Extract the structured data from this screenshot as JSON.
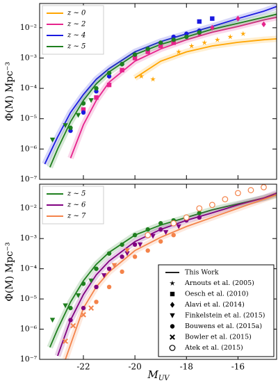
{
  "chart_data": [
    {
      "type": "line",
      "xlim": [
        -23.7,
        -14.5
      ],
      "ylim": [
        1e-07,
        0.063
      ],
      "log_y": true,
      "yticks": [
        {
          "value": 1e-07,
          "label": "10⁻⁷"
        },
        {
          "value": 1e-06,
          "label": "10⁻⁶"
        },
        {
          "value": 1e-05,
          "label": "10⁻⁵"
        },
        {
          "value": 0.0001,
          "label": "10⁻⁴"
        },
        {
          "value": 0.001,
          "label": "10⁻³"
        },
        {
          "value": 0.01,
          "label": "10⁻²"
        }
      ],
      "y_label": "Φ(M) Mpc⁻³",
      "legend": "upper left",
      "series": [
        {
          "name": "z ∼ 0",
          "color": "#ffa500",
          "x": [
            -20,
            -19,
            -18,
            -17,
            -16,
            -15,
            -14.5
          ],
          "values": [
            0.00022,
            0.00079,
            0.0016,
            0.0025,
            0.0033,
            0.004,
            0.0043
          ]
        },
        {
          "name": "z ∼ 2",
          "color": "#e6238c",
          "x": [
            -22.5,
            -22,
            -21.5,
            -21,
            -20,
            -19,
            -18,
            -17,
            -16,
            -15,
            -14.5
          ],
          "values": [
            5e-07,
            6.3e-06,
            4e-05,
            0.00016,
            0.00079,
            0.002,
            0.004,
            0.0071,
            0.011,
            0.018,
            0.022
          ]
        },
        {
          "name": "z ∼ 4",
          "color": "#1a1ae0",
          "x": [
            -23.5,
            -23,
            -22.5,
            -22,
            -21.5,
            -21,
            -20,
            -19,
            -18,
            -17,
            -16,
            -15,
            -14.5
          ],
          "values": [
            3.2e-07,
            2.5e-06,
            1.6e-05,
            6.3e-05,
            0.0002,
            0.00045,
            0.0016,
            0.0035,
            0.0063,
            0.011,
            0.02,
            0.035,
            0.05
          ]
        },
        {
          "name": "z ∼ 5",
          "color": "#1e7f1e",
          "x": [
            -23.3,
            -23,
            -22.5,
            -22,
            -21.5,
            -21,
            -20,
            -19,
            -18,
            -17,
            -16,
            -15,
            -14.5
          ],
          "values": [
            2.5e-07,
            1e-06,
            7.9e-06,
            4e-05,
            0.00014,
            0.00035,
            0.0013,
            0.0028,
            0.005,
            0.0089,
            0.014,
            0.022,
            0.028
          ]
        }
      ],
      "points": [
        {
          "color": "#ffa500",
          "marker": "star",
          "x": [
            -19.75,
            -19.3,
            -18.3,
            -17.8,
            -17.3,
            -16.8,
            -16.3,
            -15.8
          ],
          "values": [
            0.00025,
            0.0002,
            0.0016,
            0.0025,
            0.0032,
            0.004,
            0.005,
            0.0063
          ]
        },
        {
          "color": "#e6238c",
          "marker": "square",
          "x": [
            -22.0,
            -21.5,
            -21.0,
            -20.5,
            -20.0,
            -19.5,
            -19.0,
            -18.5
          ],
          "values": [
            2e-05,
            5e-05,
            0.00013,
            0.0004,
            0.001,
            0.0016,
            0.0025,
            0.0032
          ]
        },
        {
          "color": "#e6238c",
          "marker": "diamond",
          "x": [
            -17.5,
            -17.0,
            -16.0,
            -15.0
          ],
          "values": [
            0.0063,
            0.01,
            0.02,
            0.013
          ]
        },
        {
          "color": "#1a1ae0",
          "marker": "circle",
          "x": [
            -22.5,
            -22.0,
            -21.5,
            -21.0,
            -20.5,
            -20.0,
            -19.5,
            -19.0,
            -18.5,
            -18.0,
            -17.5
          ],
          "values": [
            4e-06,
            1.6e-05,
            8e-05,
            0.00025,
            0.00063,
            0.0013,
            0.002,
            0.0032,
            0.005,
            0.0063,
            0.008
          ]
        },
        {
          "color": "#1a1ae0",
          "marker": "square",
          "x": [
            -17.5,
            -17.0
          ],
          "values": [
            0.016,
            0.02
          ]
        },
        {
          "color": "#1e7f1e",
          "marker": "circle",
          "x": [
            -22.5,
            -22.0,
            -21.5,
            -21.0,
            -20.5,
            -20.0,
            -19.5,
            -19.0,
            -18.5,
            -18.0,
            -17.5
          ],
          "values": [
            5e-06,
            3.2e-05,
            0.0001,
            0.00032,
            0.00063,
            0.0013,
            0.002,
            0.0032,
            0.004,
            0.005,
            0.007
          ]
        },
        {
          "color": "#1e7f1e",
          "marker": "triangle",
          "x": [
            -23.2,
            -22.7,
            -22.2,
            -21.7
          ],
          "values": [
            2e-06,
            6e-06,
            1.3e-05,
            4e-05
          ]
        }
      ]
    },
    {
      "type": "line",
      "xlim": [
        -23.7,
        -14.5
      ],
      "ylim": [
        1e-07,
        0.063
      ],
      "log_y": true,
      "xticks": [
        -22,
        -20,
        -18,
        -16
      ],
      "yticks": [
        {
          "value": 1e-07,
          "label": "10⁻⁷"
        },
        {
          "value": 1e-06,
          "label": "10⁻⁶"
        },
        {
          "value": 1e-05,
          "label": "10⁻⁵"
        },
        {
          "value": 0.0001,
          "label": "10⁻⁴"
        },
        {
          "value": 0.001,
          "label": "10⁻³"
        },
        {
          "value": 0.01,
          "label": "10⁻²"
        }
      ],
      "y_label": "Φ(M) Mpc⁻³",
      "x_label": {
        "main": "M",
        "sub": "UV"
      },
      "legend": "upper left",
      "series": [
        {
          "name": "z ∼ 5",
          "color": "#1e7f1e",
          "x": [
            -23.3,
            -23,
            -22.5,
            -22,
            -21.5,
            -21,
            -20,
            -19,
            -18,
            -17,
            -16,
            -15,
            -14.5
          ],
          "values": [
            2.5e-07,
            1e-06,
            7.9e-06,
            4e-05,
            0.00014,
            0.00035,
            0.0013,
            0.0028,
            0.005,
            0.0089,
            0.014,
            0.022,
            0.028
          ]
        },
        {
          "name": "z ∼ 6",
          "color": "#800080",
          "x": [
            -23,
            -22.5,
            -22,
            -21.5,
            -21,
            -20,
            -19,
            -18,
            -17,
            -16,
            -15,
            -14.5
          ],
          "values": [
            1.3e-07,
            2e-06,
            1.4e-05,
            6.3e-05,
            0.00018,
            0.00079,
            0.002,
            0.004,
            0.0071,
            0.013,
            0.022,
            0.032
          ]
        },
        {
          "name": "z ∼ 7",
          "color": "#f4834a",
          "x": [
            -22.7,
            -22,
            -21.5,
            -21,
            -20,
            -19,
            -18,
            -17,
            -16,
            -15,
            -14.5
          ],
          "values": [
            1e-07,
            5e-06,
            2.5e-05,
            7.9e-05,
            0.0004,
            0.0011,
            0.0025,
            0.005,
            0.01,
            0.02,
            0.028
          ]
        }
      ],
      "points": [
        {
          "color": "#1e7f1e",
          "marker": "circle",
          "x": [
            -22.5,
            -22.0,
            -21.5,
            -21.0,
            -20.5,
            -20.0,
            -19.5,
            -19.0,
            -18.5,
            -18.0,
            -17.5
          ],
          "values": [
            5e-06,
            3.2e-05,
            0.0001,
            0.00032,
            0.00063,
            0.0013,
            0.002,
            0.0032,
            0.004,
            0.005,
            0.007
          ]
        },
        {
          "color": "#1e7f1e",
          "marker": "triangle",
          "x": [
            -23.2,
            -22.7,
            -22.2,
            -21.7
          ],
          "values": [
            2e-06,
            6e-06,
            1.3e-05,
            4e-05
          ]
        },
        {
          "color": "#800080",
          "marker": "circle",
          "x": [
            -22.5,
            -22.0,
            -21.5,
            -21.0,
            -20.5,
            -20.0,
            -19.5,
            -19.0,
            -18.5,
            -18.0,
            -17.5
          ],
          "values": [
            2e-06,
            5e-06,
            2.5e-05,
            0.0001,
            0.00025,
            0.00063,
            0.0013,
            0.002,
            0.0032,
            0.004,
            0.005
          ]
        },
        {
          "color": "#800080",
          "marker": "triangle",
          "x": [
            -21.2,
            -20.8,
            -20.3,
            -19.8,
            -19.3,
            -18.8,
            -18.3
          ],
          "values": [
            6e-05,
            0.00013,
            0.00032,
            0.00063,
            0.0012,
            0.0016,
            0.0025
          ]
        },
        {
          "color": "#f4834a",
          "marker": "circle",
          "x": [
            -21.5,
            -21.0,
            -20.5,
            -20.0,
            -19.5,
            -19.0,
            -18.5
          ],
          "values": [
            8e-06,
            2.5e-05,
            8e-05,
            0.00025,
            0.0004,
            0.0008,
            0.0013
          ]
        },
        {
          "color": "#f4834a",
          "marker": "x",
          "x": [
            -22.7,
            -22.4,
            -22.0,
            -21.7
          ],
          "values": [
            4e-07,
            1.3e-06,
            3e-06,
            5e-06
          ]
        },
        {
          "color": "#f4834a",
          "marker": "open-circle",
          "x": [
            -19.5,
            -18.5,
            -18.0,
            -17.5,
            -17.0,
            -16.5,
            -16.0,
            -15.5,
            -15.0
          ],
          "values": [
            0.0013,
            0.0032,
            0.005,
            0.01,
            0.013,
            0.02,
            0.032,
            0.04,
            0.05
          ]
        },
        {
          "color": "#f4834a",
          "marker": "triangle",
          "x": [
            -20.8,
            -20.3
          ],
          "values": [
            0.00013,
            0.0004
          ]
        }
      ],
      "marker_legend_loc": "lower right",
      "marker_legend": [
        {
          "name": "This Work",
          "marker": "line"
        },
        {
          "name": "Arnouts et al. (2005)",
          "marker": "star"
        },
        {
          "name": "Oesch et al. (2010)",
          "marker": "square"
        },
        {
          "name": "Alavi et al. (2014)",
          "marker": "diamond"
        },
        {
          "name": "Finkelstein et al. (2015)",
          "marker": "triangle"
        },
        {
          "name": "Bouwens et al. (2015a)",
          "marker": "circle"
        },
        {
          "name": "Bowler et al. (2015)",
          "marker": "x"
        },
        {
          "name": "Atek et al. (2015)",
          "marker": "open-circle"
        }
      ]
    }
  ]
}
